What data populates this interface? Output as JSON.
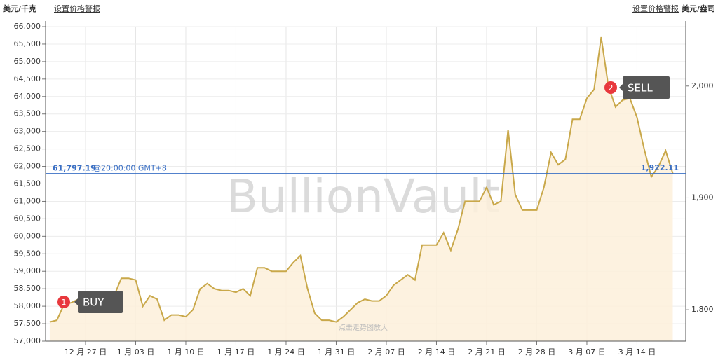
{
  "chart_data": {
    "type": "line",
    "left_unit": "美元/千克",
    "right_unit": "美元/盎司",
    "alert_link": "设置价格警报",
    "watermark": "BullionVault",
    "zoom_hint": "点击走势图放大",
    "categories": [
      null,
      null,
      null,
      null,
      null,
      "12 月 27 日",
      null,
      null,
      null,
      null,
      null,
      null,
      "1 月 03 日",
      null,
      null,
      null,
      null,
      null,
      null,
      "1 月 10 日",
      null,
      null,
      null,
      null,
      null,
      null,
      "1 月 17 日",
      null,
      null,
      null,
      null,
      null,
      null,
      "1 月 24 日",
      null,
      null,
      null,
      null,
      null,
      null,
      "1 月 31 日",
      null,
      null,
      null,
      null,
      null,
      null,
      "2 月 07 日",
      null,
      null,
      null,
      null,
      null,
      null,
      "2 月 14 日",
      null,
      null,
      null,
      null,
      null,
      null,
      "2 月 21 日",
      null,
      null,
      null,
      null,
      null,
      null,
      "2 月 28 日",
      null,
      null,
      null,
      null,
      null,
      null,
      "3 月 07 日",
      null,
      null,
      null,
      null,
      null,
      null,
      "3 月 14 日",
      null,
      null,
      null,
      null,
      null
    ],
    "series": [
      {
        "color": "#c9a84a",
        "fill": "#fdf0da",
        "values": [
          57550,
          57600,
          58050,
          58100,
          58200,
          58200,
          58400,
          58000,
          57900,
          58300,
          58800,
          58800,
          58750,
          58000,
          58300,
          58200,
          57600,
          57750,
          57750,
          57700,
          57900,
          58500,
          58650,
          58500,
          58450,
          58450,
          58400,
          58500,
          58300,
          59100,
          59100,
          59000,
          59000,
          59000,
          59250,
          59450,
          58500,
          57800,
          57600,
          57600,
          57550,
          57700,
          57900,
          58100,
          58200,
          58150,
          58150,
          58300,
          58600,
          58750,
          58900,
          58750,
          59750,
          59750,
          59750,
          60100,
          59600,
          60200,
          61000,
          61000,
          61000,
          61400,
          60900,
          61000,
          63050,
          61200,
          60750,
          60750,
          60750,
          61400,
          62400,
          62050,
          62200,
          63350,
          63350,
          63950,
          64200,
          65700,
          64300,
          63700,
          63900,
          63950,
          63400,
          62500,
          61700,
          62000,
          62450,
          61800
        ]
      }
    ],
    "ylim": [
      57000,
      66000
    ],
    "yticks": [
      {
        "value": 57000,
        "label": "57,000"
      },
      {
        "value": 57500,
        "label": "57,500"
      },
      {
        "value": 58000,
        "label": "58,000"
      },
      {
        "value": 58500,
        "label": "58,500"
      },
      {
        "value": 59000,
        "label": "59,000"
      },
      {
        "value": 59500,
        "label": "59,500"
      },
      {
        "value": 60000,
        "label": "60,000"
      },
      {
        "value": 60500,
        "label": "60,500"
      },
      {
        "value": 61000,
        "label": "61,000"
      },
      {
        "value": 61500,
        "label": "61,500"
      },
      {
        "value": 62000,
        "label": "62,000"
      },
      {
        "value": 62500,
        "label": "62,500"
      },
      {
        "value": 63000,
        "label": "63,000"
      },
      {
        "value": 63500,
        "label": "63,500"
      },
      {
        "value": 64000,
        "label": "64,000"
      },
      {
        "value": 64500,
        "label": "64,500"
      },
      {
        "value": 65000,
        "label": "65,000"
      },
      {
        "value": 65500,
        "label": "65,500"
      },
      {
        "value": 66000,
        "label": "66,000"
      }
    ],
    "y2lim": [
      1771.9,
      2053.1
    ],
    "y2ticks": [
      {
        "value": 1800,
        "label": "1,800"
      },
      {
        "value": 1900,
        "label": "1,900"
      },
      {
        "value": 2000,
        "label": "2,000"
      }
    ],
    "grid": true,
    "ref_line": {
      "value": 61797.19,
      "label": "61,797.19",
      "time": "@20:00:00 GMT+8",
      "y2_value": 1922.11,
      "y2_label": "1,922.11",
      "color": "#3a6fc4"
    },
    "annotations": [
      {
        "number": "1",
        "label": "BUY"
      },
      {
        "number": "2",
        "label": "SELL"
      }
    ]
  }
}
